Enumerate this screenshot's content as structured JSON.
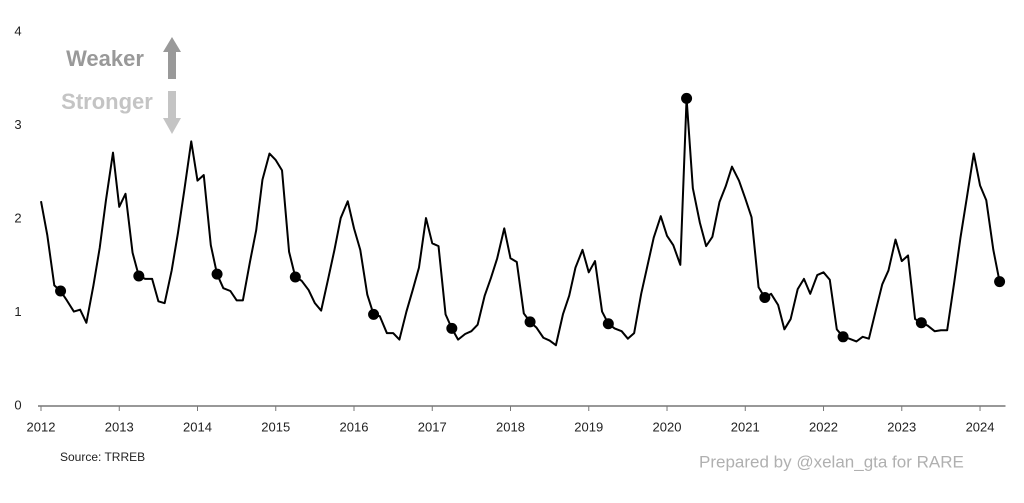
{
  "chart_data": {
    "type": "line",
    "x": [
      2012,
      2012.08,
      2012.17,
      2012.25,
      2012.33,
      2012.42,
      2012.5,
      2012.58,
      2012.67,
      2012.75,
      2012.83,
      2012.92,
      2013,
      2013.08,
      2013.17,
      2013.25,
      2013.33,
      2013.42,
      2013.5,
      2013.58,
      2013.67,
      2013.75,
      2013.83,
      2013.92,
      2014,
      2014.08,
      2014.17,
      2014.25,
      2014.33,
      2014.42,
      2014.5,
      2014.58,
      2014.67,
      2014.75,
      2014.83,
      2014.92,
      2015,
      2015.08,
      2015.17,
      2015.25,
      2015.33,
      2015.42,
      2015.5,
      2015.58,
      2015.67,
      2015.75,
      2015.83,
      2015.92,
      2016,
      2016.08,
      2016.17,
      2016.25,
      2016.33,
      2016.42,
      2016.5,
      2016.58,
      2016.67,
      2016.75,
      2016.83,
      2016.92,
      2017,
      2017.08,
      2017.17,
      2017.25,
      2017.33,
      2017.42,
      2017.5,
      2017.58,
      2017.67,
      2017.75,
      2017.83,
      2017.92,
      2018,
      2018.08,
      2018.17,
      2018.25,
      2018.33,
      2018.42,
      2018.5,
      2018.58,
      2018.67,
      2018.75,
      2018.83,
      2018.92,
      2019,
      2019.08,
      2019.17,
      2019.25,
      2019.33,
      2019.42,
      2019.5,
      2019.58,
      2019.67,
      2019.75,
      2019.83,
      2019.92,
      2020,
      2020.08,
      2020.17,
      2020.25,
      2020.33,
      2020.42,
      2020.5,
      2020.58,
      2020.67,
      2020.75,
      2020.83,
      2020.92,
      2021,
      2021.08,
      2021.17,
      2021.25,
      2021.33,
      2021.42,
      2021.5,
      2021.58,
      2021.67,
      2021.75,
      2021.83,
      2021.92,
      2022,
      2022.08,
      2022.17,
      2022.25,
      2022.33,
      2022.42,
      2022.5,
      2022.58,
      2022.67,
      2022.75,
      2022.83,
      2022.92,
      2023,
      2023.08,
      2023.17,
      2023.25,
      2023.33,
      2023.42,
      2023.5,
      2023.58,
      2023.67,
      2023.75,
      2023.83,
      2023.92,
      2024,
      2024.08,
      2024.17,
      2024.25
    ],
    "series": [
      {
        "color": "#000000",
        "style": "line",
        "values": [
          2.19,
          1.83,
          1.29,
          1.23,
          1.13,
          1.01,
          1.03,
          0.89,
          1.29,
          1.69,
          2.2,
          2.71,
          2.13,
          2.27,
          1.64,
          1.39,
          1.36,
          1.36,
          1.12,
          1.1,
          1.45,
          1.85,
          2.3,
          2.83,
          2.41,
          2.47,
          1.72,
          1.41,
          1.26,
          1.23,
          1.13,
          1.13,
          1.54,
          1.88,
          2.42,
          2.7,
          2.63,
          2.52,
          1.65,
          1.38,
          1.34,
          1.24,
          1.1,
          1.02,
          1.36,
          1.67,
          2.01,
          2.19,
          1.9,
          1.67,
          1.19,
          0.98,
          0.96,
          0.78,
          0.78,
          0.71,
          1.01,
          1.24,
          1.48,
          2.01,
          1.74,
          1.71,
          0.98,
          0.83,
          0.71,
          0.77,
          0.8,
          0.87,
          1.18,
          1.37,
          1.58,
          1.9,
          1.58,
          1.54,
          0.99,
          0.9,
          0.84,
          0.73,
          0.7,
          0.65,
          0.98,
          1.18,
          1.48,
          1.67,
          1.43,
          1.55,
          1.01,
          0.88,
          0.83,
          0.8,
          0.72,
          0.78,
          1.2,
          1.5,
          1.8,
          2.03,
          1.82,
          1.72,
          1.51,
          3.29,
          2.33,
          1.96,
          1.71,
          1.81,
          2.18,
          2.35,
          2.56,
          2.41,
          2.22,
          2.02,
          1.27,
          1.16,
          1.2,
          1.08,
          0.82,
          0.93,
          1.25,
          1.36,
          1.2,
          1.4,
          1.43,
          1.35,
          0.82,
          0.74,
          0.72,
          0.69,
          0.74,
          0.72,
          1.03,
          1.3,
          1.45,
          1.78,
          1.55,
          1.61,
          0.93,
          0.89,
          0.86,
          0.8,
          0.81,
          0.81,
          1.32,
          1.8,
          2.22,
          2.7,
          2.36,
          2.2,
          1.67,
          1.33
        ]
      },
      {
        "color": "#000000",
        "style": "dots",
        "values": [
          null,
          null,
          null,
          1.23,
          null,
          null,
          null,
          null,
          null,
          null,
          null,
          null,
          null,
          null,
          null,
          1.39,
          null,
          null,
          null,
          null,
          null,
          null,
          null,
          null,
          null,
          null,
          null,
          1.41,
          null,
          null,
          null,
          null,
          null,
          null,
          null,
          null,
          null,
          null,
          null,
          1.38,
          null,
          null,
          null,
          null,
          null,
          null,
          null,
          null,
          null,
          null,
          null,
          0.98,
          null,
          null,
          null,
          null,
          null,
          null,
          null,
          null,
          null,
          null,
          null,
          0.83,
          null,
          null,
          null,
          null,
          null,
          null,
          null,
          null,
          null,
          null,
          null,
          0.9,
          null,
          null,
          null,
          null,
          null,
          null,
          null,
          null,
          null,
          null,
          null,
          0.88,
          null,
          null,
          null,
          null,
          null,
          null,
          null,
          null,
          null,
          null,
          null,
          3.29,
          null,
          null,
          null,
          null,
          null,
          null,
          null,
          null,
          null,
          null,
          null,
          1.16,
          null,
          null,
          null,
          null,
          null,
          null,
          null,
          null,
          null,
          null,
          null,
          0.74,
          null,
          null,
          null,
          null,
          null,
          null,
          null,
          null,
          null,
          null,
          null,
          0.89,
          null,
          null,
          null,
          null,
          null,
          null,
          null,
          null,
          null,
          null,
          null,
          1.33
        ]
      }
    ],
    "xlim": [
      2012,
      2024.3
    ],
    "xticks": [
      2012,
      2013,
      2014,
      2015,
      2016,
      2017,
      2018,
      2019,
      2020,
      2021,
      2022,
      2023,
      2024
    ],
    "ylim": [
      0,
      4
    ],
    "yticks": [
      0,
      1,
      2,
      3,
      4
    ],
    "grid": false,
    "annotations": [
      "Weaker",
      "Stronger"
    ],
    "source": "Source: TRREB",
    "credit": "Prepared by @xelan_gta for RARE"
  }
}
